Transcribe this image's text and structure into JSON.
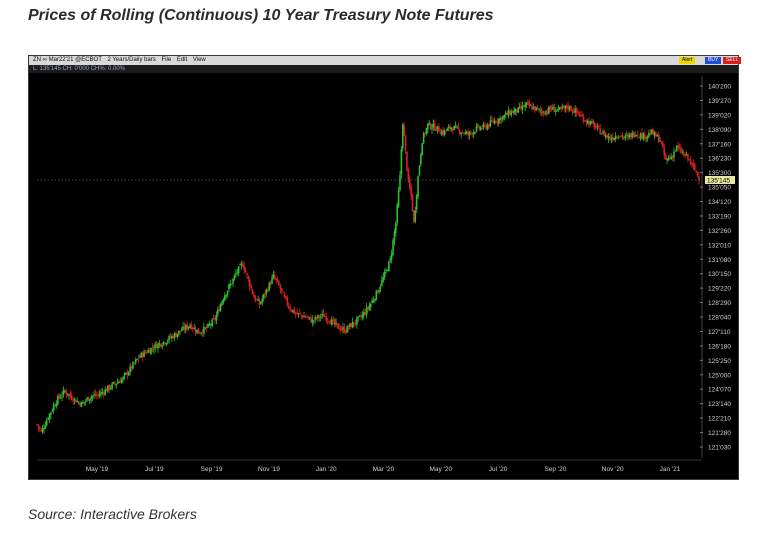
{
  "title": "Prices of Rolling (Continuous) 10 Year Treasury Note Futures",
  "source": "Source: Interactive Brokers",
  "toolbar": {
    "symbol": "ZN ∞ Mar22'21 @ECBOT",
    "period": "2 Years/Daily bars",
    "menu": [
      "File",
      "Edit",
      "View"
    ],
    "alert": "Alert",
    "buy": "BUY",
    "sell": "SELL"
  },
  "info_line": "L: 135'145 CH: 0'000  CH%: 0.00%",
  "colors": {
    "up": "#2fc12f",
    "down": "#e02020",
    "background": "#000000",
    "axis_text": "#cfcfcf"
  },
  "chart_data": {
    "type": "candlestick",
    "x_ticks": [
      "May '19",
      "Jul '19",
      "Sep '19",
      "Nov '19",
      "Jan '20",
      "Mar '20",
      "May '20",
      "Jul '20",
      "Sep '20",
      "Nov '20",
      "Jan '21"
    ],
    "y_ticks": [
      "140'200",
      "139'270",
      "139'020",
      "138'090",
      "137'160",
      "136'230",
      "135'300",
      "135'050",
      "134'120",
      "133'190",
      "132'260",
      "132'010",
      "131'080",
      "130'150",
      "129'220",
      "128'290",
      "128'040",
      "127'110",
      "126'180",
      "125'250",
      "125'000",
      "124'070",
      "123'140",
      "122'210",
      "121'280",
      "121'030"
    ],
    "last_price_label": "135'145",
    "y_range": [
      120.5,
      140.75
    ],
    "close_path": [
      [
        0,
        122.1
      ],
      [
        3,
        121.7
      ],
      [
        8,
        122.5
      ],
      [
        14,
        123.4
      ],
      [
        20,
        123.9
      ],
      [
        26,
        123.5
      ],
      [
        32,
        123.2
      ],
      [
        38,
        123.6
      ],
      [
        44,
        123.7
      ],
      [
        50,
        124.0
      ],
      [
        56,
        124.3
      ],
      [
        62,
        124.6
      ],
      [
        68,
        125.2
      ],
      [
        74,
        125.8
      ],
      [
        80,
        126.1
      ],
      [
        86,
        126.4
      ],
      [
        92,
        126.6
      ],
      [
        98,
        126.9
      ],
      [
        104,
        127.2
      ],
      [
        110,
        127.5
      ],
      [
        116,
        127.1
      ],
      [
        122,
        127.3
      ],
      [
        128,
        127.8
      ],
      [
        134,
        129.0
      ],
      [
        140,
        129.8
      ],
      [
        144,
        130.4
      ],
      [
        148,
        130.8
      ],
      [
        152,
        129.9
      ],
      [
        156,
        129.0
      ],
      [
        160,
        128.6
      ],
      [
        164,
        129.2
      ],
      [
        170,
        130.1
      ],
      [
        174,
        129.6
      ],
      [
        178,
        128.9
      ],
      [
        182,
        128.4
      ],
      [
        186,
        128.1
      ],
      [
        190,
        128.0
      ],
      [
        194,
        127.9
      ],
      [
        198,
        127.7
      ],
      [
        202,
        127.9
      ],
      [
        206,
        128.0
      ],
      [
        210,
        127.8
      ],
      [
        214,
        127.5
      ],
      [
        218,
        127.3
      ],
      [
        222,
        127.2
      ],
      [
        226,
        127.5
      ],
      [
        230,
        127.7
      ],
      [
        234,
        128.0
      ],
      [
        238,
        128.4
      ],
      [
        242,
        128.9
      ],
      [
        246,
        129.5
      ],
      [
        250,
        130.2
      ],
      [
        254,
        131.0
      ],
      [
        258,
        133.0
      ],
      [
        261,
        135.5
      ],
      [
        263,
        138.5
      ],
      [
        265,
        136.8
      ],
      [
        267,
        135.2
      ],
      [
        269,
        134.5
      ],
      [
        271,
        133.0
      ],
      [
        274,
        135.5
      ],
      [
        277,
        137.5
      ],
      [
        281,
        138.3
      ],
      [
        286,
        138.2
      ],
      [
        292,
        137.9
      ],
      [
        298,
        138.2
      ],
      [
        304,
        138.0
      ],
      [
        310,
        137.8
      ],
      [
        316,
        138.1
      ],
      [
        322,
        138.2
      ],
      [
        328,
        138.5
      ],
      [
        334,
        138.7
      ],
      [
        340,
        139.0
      ],
      [
        346,
        139.1
      ],
      [
        352,
        139.4
      ],
      [
        358,
        139.2
      ],
      [
        364,
        139.0
      ],
      [
        370,
        139.2
      ],
      [
        376,
        139.1
      ],
      [
        382,
        139.3
      ],
      [
        388,
        139.0
      ],
      [
        394,
        138.6
      ],
      [
        400,
        138.3
      ],
      [
        406,
        137.9
      ],
      [
        412,
        137.6
      ],
      [
        418,
        137.8
      ],
      [
        424,
        137.6
      ],
      [
        430,
        137.9
      ],
      [
        436,
        137.7
      ],
      [
        442,
        137.9
      ],
      [
        448,
        137.5
      ],
      [
        452,
        136.4
      ],
      [
        456,
        136.6
      ],
      [
        460,
        137.1
      ],
      [
        464,
        136.8
      ],
      [
        468,
        136.5
      ],
      [
        472,
        136.0
      ],
      [
        476,
        135.5
      ]
    ]
  }
}
